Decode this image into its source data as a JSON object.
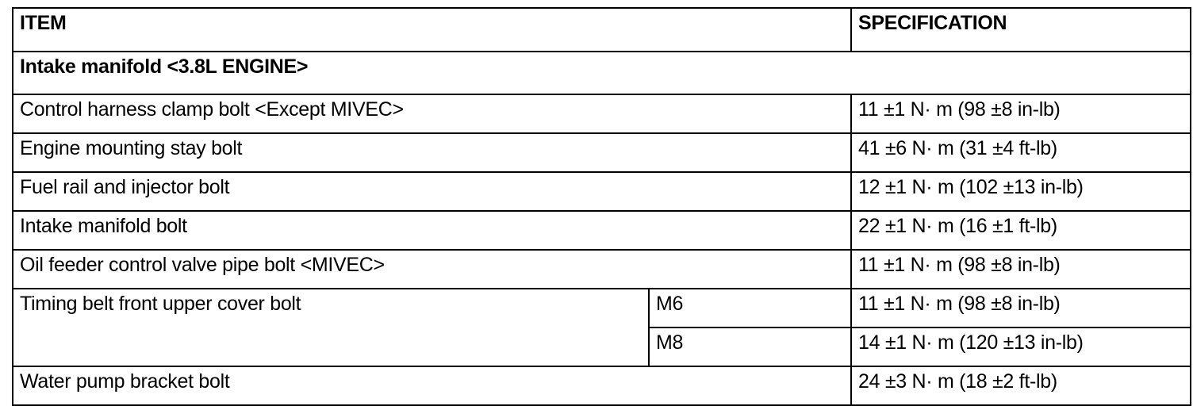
{
  "header": {
    "item": "ITEM",
    "specification": "SPECIFICATION"
  },
  "section": "Intake manifold <3.8L ENGINE>",
  "rows": [
    {
      "item": "Control harness clamp bolt <Except MIVEC>",
      "spec": "11 ±1 N· m (98 ±8 in-lb)"
    },
    {
      "item": "Engine mounting stay bolt",
      "spec": "41 ±6 N· m (31 ±4 ft-lb)"
    },
    {
      "item": "Fuel rail and injector bolt",
      "spec": "12 ±1 N· m (102 ±13 in-lb)"
    },
    {
      "item": "Intake manifold bolt",
      "spec": "22 ±1 N· m (16 ±1 ft-lb)"
    },
    {
      "item": "Oil feeder control valve pipe bolt <MIVEC>",
      "spec": "11 ±1 N· m (98 ±8 in-lb)"
    },
    {
      "item": "Timing belt front upper cover bolt",
      "sub": [
        {
          "size": "M6",
          "spec": "11 ±1 N· m (98 ±8 in-lb)"
        },
        {
          "size": "M8",
          "spec": "14 ±1 N· m (120 ±13 in-lb)"
        }
      ]
    },
    {
      "item": "Water pump bracket bolt",
      "spec": "24 ±3 N· m (18 ±2 ft-lb)"
    }
  ]
}
